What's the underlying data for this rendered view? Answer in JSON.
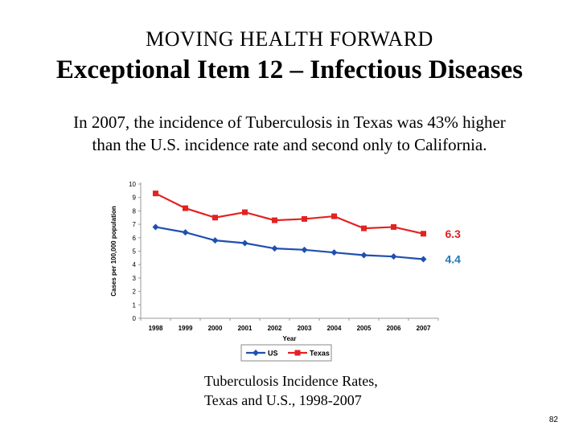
{
  "slide": {
    "supertitle": "MOVING HEALTH FORWARD",
    "title": "Exceptional Item 12 – Infectious Diseases",
    "summary_line1": "In 2007, the incidence of Tuberculosis in Texas was 43% higher",
    "summary_line2": "than the U.S. incidence rate and second only to California.",
    "caption_line1": "Tuberculosis Incidence Rates,",
    "caption_line2": "Texas and U.S., 1998-2007",
    "page_number": "82"
  },
  "chart_data": {
    "type": "line",
    "title": "Tuberculosis Incidence Rates, Texas and U.S., 1998-2007",
    "xlabel": "Year",
    "ylabel": "Cases per 100,000 population",
    "ylim": [
      0,
      10
    ],
    "yticks": [
      0,
      1,
      2,
      3,
      4,
      5,
      6,
      7,
      8,
      9,
      10
    ],
    "categories": [
      "1998",
      "1999",
      "2000",
      "2001",
      "2002",
      "2003",
      "2004",
      "2005",
      "2006",
      "2007"
    ],
    "series": [
      {
        "name": "US",
        "color": "#1f4fb0",
        "marker": "diamond",
        "values": [
          6.8,
          6.4,
          5.8,
          5.6,
          5.2,
          5.1,
          4.9,
          4.7,
          4.6,
          4.4
        ]
      },
      {
        "name": "Texas",
        "color": "#e32222",
        "marker": "square",
        "values": [
          9.3,
          8.2,
          7.5,
          7.9,
          7.3,
          7.4,
          7.6,
          6.7,
          6.8,
          6.3
        ]
      }
    ],
    "annotations": [
      {
        "series": "Texas",
        "text": "6.3",
        "color": "#e32222"
      },
      {
        "series": "US",
        "text": "4.4",
        "color": "#1f77b4"
      }
    ],
    "legend_position": "bottom"
  }
}
